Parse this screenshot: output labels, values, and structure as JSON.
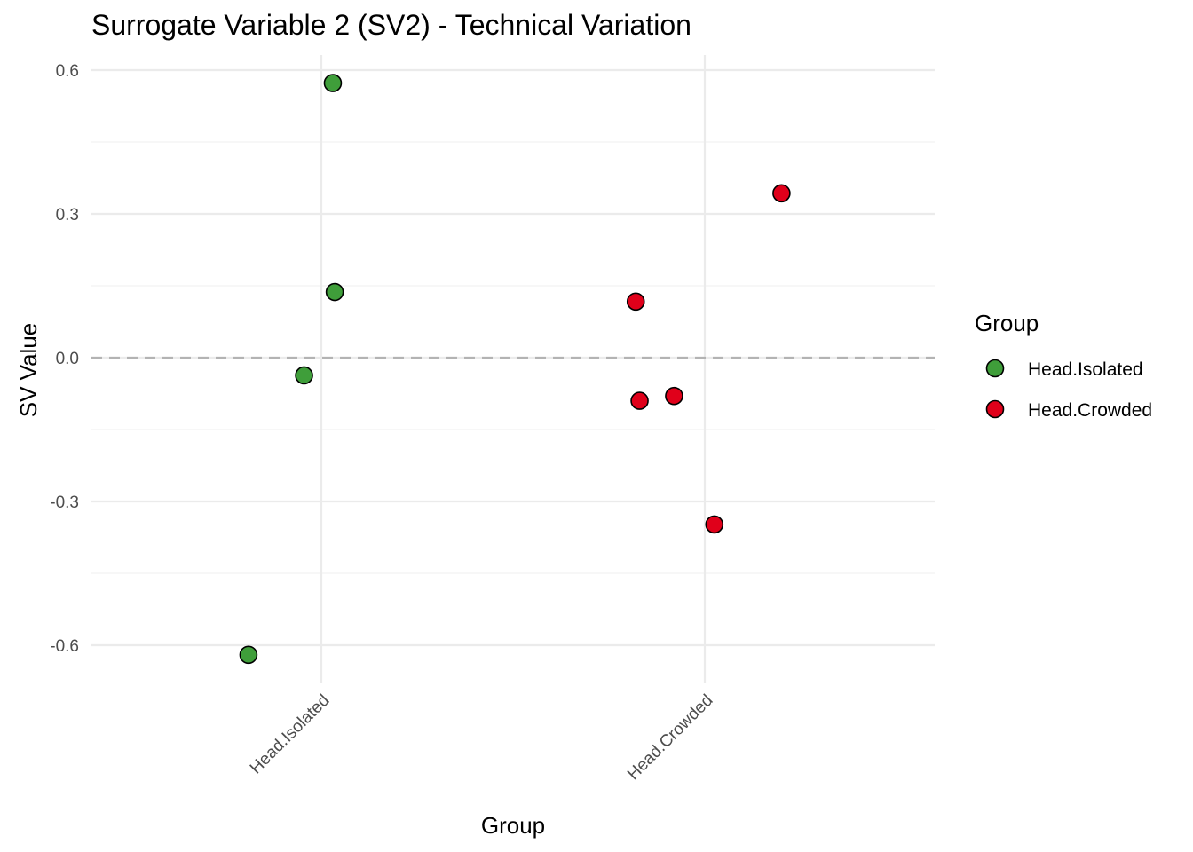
{
  "chart_data": {
    "type": "scatter",
    "title": "Surrogate Variable 2 (SV2) - Technical Variation",
    "xlabel": "Group",
    "ylabel": "SV Value",
    "categories": [
      "Head.Isolated",
      "Head.Crowded"
    ],
    "y_ticks": [
      0.6,
      0.3,
      0.0,
      -0.3,
      -0.6
    ],
    "y_tick_labels": [
      "0.6",
      "0.3",
      "0.0",
      "-0.3",
      "-0.6"
    ],
    "ylim": [
      -0.69,
      0.63
    ],
    "reference_line": {
      "y": 0.0,
      "style": "dashed"
    },
    "legend": {
      "title": "Group",
      "position": "right",
      "entries": [
        {
          "label": "Head.Isolated",
          "color": "#3f9e3a"
        },
        {
          "label": "Head.Crowded",
          "color": "#e0001a"
        }
      ]
    },
    "jitter_note": "points jittered horizontally around category",
    "series": [
      {
        "name": "Head.Isolated",
        "color": "#3f9e3a",
        "points": [
          {
            "category": "Head.Isolated",
            "jitter": 0.03,
            "y": 0.573
          },
          {
            "category": "Head.Isolated",
            "jitter": 0.035,
            "y": 0.137
          },
          {
            "category": "Head.Isolated",
            "jitter": -0.045,
            "y": -0.037
          },
          {
            "category": "Head.Isolated",
            "jitter": -0.19,
            "y": -0.62
          }
        ]
      },
      {
        "name": "Head.Crowded",
        "color": "#e0001a",
        "points": [
          {
            "category": "Head.Crowded",
            "jitter": 0.2,
            "y": 0.343
          },
          {
            "category": "Head.Crowded",
            "jitter": -0.18,
            "y": 0.117
          },
          {
            "category": "Head.Crowded",
            "jitter": -0.17,
            "y": -0.09
          },
          {
            "category": "Head.Crowded",
            "jitter": -0.08,
            "y": -0.08
          },
          {
            "category": "Head.Crowded",
            "jitter": 0.025,
            "y": -0.348
          }
        ]
      }
    ]
  }
}
